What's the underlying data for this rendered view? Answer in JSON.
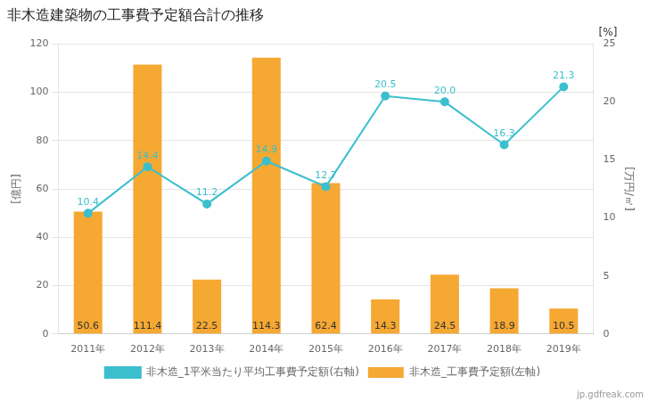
{
  "chart_data": {
    "type": "bar",
    "title": "非木造建築物の工事費予定額合計の推移",
    "categories": [
      "2011年",
      "2012年",
      "2013年",
      "2014年",
      "2015年",
      "2016年",
      "2017年",
      "2018年",
      "2019年"
    ],
    "series": [
      {
        "name": "非木造_工事費予定額(左軸)",
        "type": "bar",
        "color": "#F5A832",
        "values": [
          50.6,
          111.4,
          22.5,
          114.3,
          62.4,
          14.3,
          24.5,
          18.9,
          10.5
        ]
      },
      {
        "name": "非木造_1平米当たり平均工事費予定額(右軸)",
        "type": "line",
        "color": "#3BBFCE",
        "marker": "circle",
        "axis": "y2",
        "values": [
          10.4,
          14.4,
          11.2,
          14.9,
          12.7,
          20.5,
          20.0,
          16.3,
          21.3
        ],
        "value_labels": [
          "10.4",
          "14.4",
          "11.2",
          "14.9",
          "12.7",
          "20.5",
          "20.0",
          "16.3",
          "21.3"
        ]
      }
    ],
    "ylabel": "[億円]",
    "y2label": "[万円/㎡]",
    "ylim": [
      0,
      120
    ],
    "yticks": [
      0,
      20,
      40,
      60,
      80,
      100,
      120
    ],
    "y2lim": [
      0,
      25
    ],
    "y2ticks": [
      0,
      5,
      10,
      15,
      20,
      25
    ],
    "grid": true,
    "legend": "bottom",
    "data_labels": true,
    "annotations": [
      "[%]",
      "jp.gdfreak.com"
    ]
  }
}
